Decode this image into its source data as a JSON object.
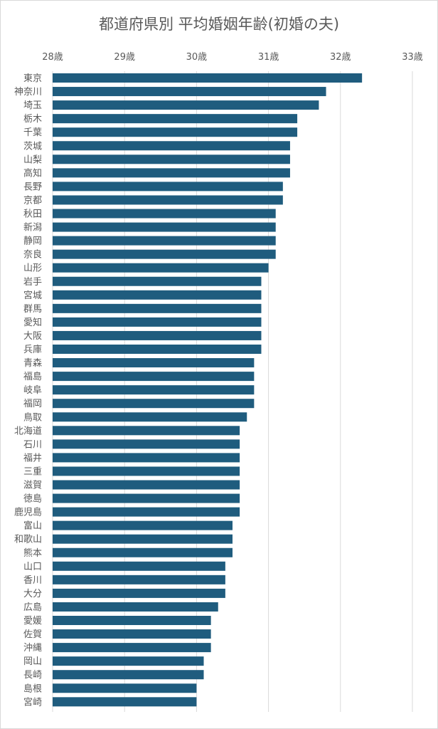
{
  "chart_data": {
    "type": "bar",
    "orientation": "horizontal",
    "title": "都道府県別 平均婚姻年齢(初婚の夫)",
    "xlabel": "",
    "ylabel": "",
    "xlim": [
      28,
      33
    ],
    "tick_values": [
      28,
      29,
      30,
      31,
      32,
      33
    ],
    "tick_labels": [
      "28歳",
      "29歳",
      "30歳",
      "31歳",
      "32歳",
      "33歳"
    ],
    "x_axis_position": "top",
    "grid": true,
    "bar_color": "#1f5c7e",
    "categories": [
      "東京",
      "神奈川",
      "埼玉",
      "栃木",
      "千葉",
      "茨城",
      "山梨",
      "高知",
      "長野",
      "京都",
      "秋田",
      "新潟",
      "静岡",
      "奈良",
      "山形",
      "岩手",
      "宮城",
      "群馬",
      "愛知",
      "大阪",
      "兵庫",
      "青森",
      "福島",
      "岐阜",
      "福岡",
      "鳥取",
      "北海道",
      "石川",
      "福井",
      "三重",
      "滋賀",
      "徳島",
      "鹿児島",
      "富山",
      "和歌山",
      "熊本",
      "山口",
      "香川",
      "大分",
      "広島",
      "愛媛",
      "佐賀",
      "沖縄",
      "岡山",
      "長崎",
      "島根",
      "宮崎"
    ],
    "values": [
      32.3,
      31.8,
      31.7,
      31.4,
      31.4,
      31.3,
      31.3,
      31.3,
      31.2,
      31.2,
      31.1,
      31.1,
      31.1,
      31.1,
      31.0,
      30.9,
      30.9,
      30.9,
      30.9,
      30.9,
      30.9,
      30.8,
      30.8,
      30.8,
      30.8,
      30.7,
      30.6,
      30.6,
      30.6,
      30.6,
      30.6,
      30.6,
      30.6,
      30.5,
      30.5,
      30.5,
      30.4,
      30.4,
      30.4,
      30.3,
      30.2,
      30.2,
      30.2,
      30.1,
      30.1,
      30.0,
      30.0
    ]
  }
}
